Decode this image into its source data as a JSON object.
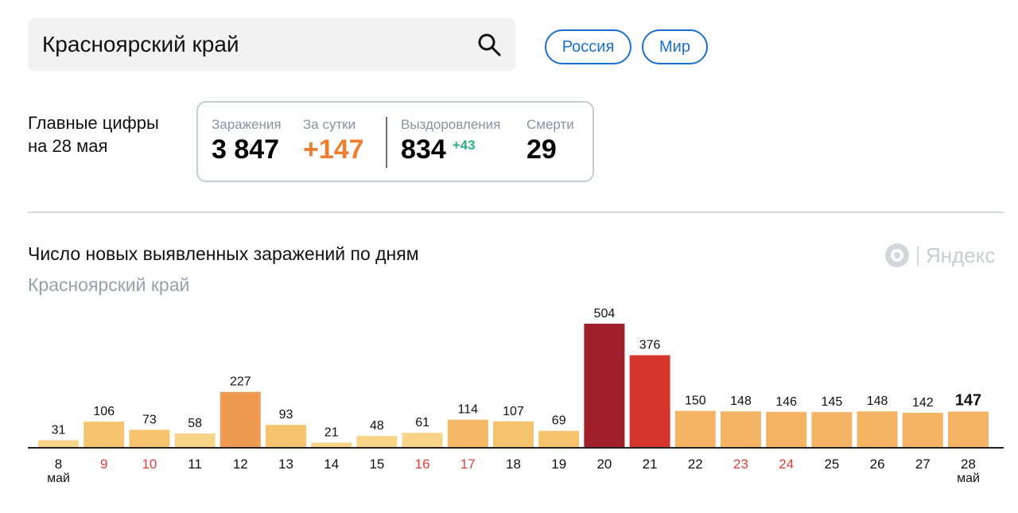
{
  "search": {
    "value": "Красноярский край"
  },
  "scope_buttons": {
    "russia": "Россия",
    "world": "Мир"
  },
  "headline": {
    "line1": "Главные цифры",
    "line2": "на 28 мая"
  },
  "stats": {
    "infections": {
      "label": "Заражения",
      "value": "3 847"
    },
    "daily": {
      "label": "За сутки",
      "value": "+147"
    },
    "recovered": {
      "label": "Выздоровления",
      "value": "834",
      "delta": "+43"
    },
    "deaths": {
      "label": "Смерти",
      "value": "29"
    }
  },
  "logo": {
    "text": "Яндекс"
  },
  "colors": {
    "accent_blue": "#1a6fd0",
    "daily_orange": "#f07d2e",
    "delta_green": "#2ab07f",
    "weekend_red": "#e2403a"
  },
  "chart_data": {
    "type": "bar",
    "title": "Число новых выявленных заражений по дням",
    "subtitle": "Красноярский край",
    "categories": [
      "8",
      "9",
      "10",
      "11",
      "12",
      "13",
      "14",
      "15",
      "16",
      "17",
      "18",
      "19",
      "20",
      "21",
      "22",
      "23",
      "24",
      "25",
      "26",
      "27",
      "28"
    ],
    "month_labels": {
      "first": "май",
      "last": "май"
    },
    "weekend_days": [
      "9",
      "10",
      "16",
      "17",
      "23",
      "24"
    ],
    "values": [
      31,
      106,
      73,
      58,
      227,
      93,
      21,
      48,
      61,
      114,
      107,
      69,
      504,
      376,
      150,
      148,
      146,
      145,
      148,
      142,
      147
    ],
    "bar_colors": [
      "#f7d488",
      "#f6c46e",
      "#f6c46e",
      "#f7d488",
      "#ef9a52",
      "#f6c46e",
      "#f7d488",
      "#f7d488",
      "#f7d488",
      "#f4b866",
      "#f6c46e",
      "#f6c46e",
      "#a11f2c",
      "#d4362b",
      "#f3b466",
      "#f3b466",
      "#f3b466",
      "#f3b466",
      "#f3b466",
      "#f3b466",
      "#f3b466"
    ],
    "highlight_last_label": true,
    "ylim": [
      0,
      504
    ],
    "grid": false,
    "legend": "none"
  }
}
